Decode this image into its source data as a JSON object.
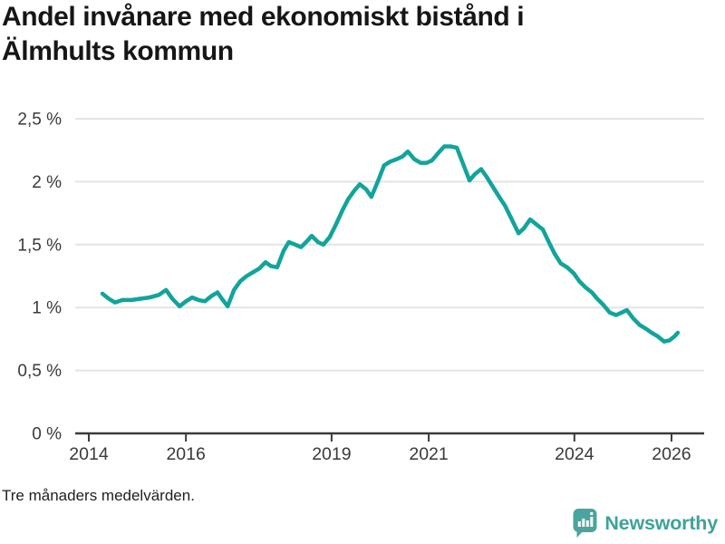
{
  "header": {
    "title_lines": [
      "Andel invånare med ekonomiskt bistånd i",
      "Älmhults kommun"
    ]
  },
  "footer": {
    "note": "Tre månaders medelvärden."
  },
  "branding": {
    "name": "Newsworthy",
    "icon": "bar-chart-speech-bubble-icon",
    "color": "#3ea29a"
  },
  "chart_data": {
    "type": "line",
    "title": "Andel invånare med ekonomiskt bistånd i Älmhults kommun",
    "note": "Tre månaders medelvärden.",
    "xlabel": "",
    "ylabel": "",
    "grid": "horizontal",
    "legend": "none",
    "xlim": [
      2013.72,
      2026.67
    ],
    "ylim": [
      0,
      2.64
    ],
    "x_ticks": [
      {
        "value": 2014,
        "label": "2014"
      },
      {
        "value": 2016,
        "label": "2016"
      },
      {
        "value": 2019,
        "label": "2019"
      },
      {
        "value": 2021,
        "label": "2021"
      },
      {
        "value": 2024,
        "label": "2024"
      },
      {
        "value": 2026,
        "label": "2026"
      }
    ],
    "y_ticks": [
      {
        "value": 0,
        "label": "0 %"
      },
      {
        "value": 0.5,
        "label": "0,5 %"
      },
      {
        "value": 1,
        "label": "1 %"
      },
      {
        "value": 1.5,
        "label": "1,5 %"
      },
      {
        "value": 2,
        "label": "2 %"
      },
      {
        "value": 2.5,
        "label": "2,5 %"
      }
    ],
    "colors": {
      "line": "#12a49b",
      "grid": "#e4e4e4",
      "axis": "#3b3b3b",
      "text": "#3a3a3a"
    },
    "series_name": "Andel invånare med ekonomiskt bistånd (%)",
    "points": [
      [
        2014.28,
        1.11
      ],
      [
        2014.41,
        1.07
      ],
      [
        2014.54,
        1.04
      ],
      [
        2014.69,
        1.06
      ],
      [
        2014.88,
        1.06
      ],
      [
        2015.06,
        1.07
      ],
      [
        2015.25,
        1.08
      ],
      [
        2015.44,
        1.1
      ],
      [
        2015.59,
        1.14
      ],
      [
        2015.72,
        1.07
      ],
      [
        2015.87,
        1.01
      ],
      [
        2016.0,
        1.05
      ],
      [
        2016.13,
        1.08
      ],
      [
        2016.26,
        1.06
      ],
      [
        2016.39,
        1.05
      ],
      [
        2016.52,
        1.09
      ],
      [
        2016.65,
        1.12
      ],
      [
        2016.74,
        1.07
      ],
      [
        2016.86,
        1.01
      ],
      [
        2016.99,
        1.14
      ],
      [
        2017.12,
        1.21
      ],
      [
        2017.25,
        1.25
      ],
      [
        2017.38,
        1.28
      ],
      [
        2017.51,
        1.31
      ],
      [
        2017.64,
        1.36
      ],
      [
        2017.75,
        1.33
      ],
      [
        2017.88,
        1.32
      ],
      [
        2018.01,
        1.45
      ],
      [
        2018.12,
        1.52
      ],
      [
        2018.25,
        1.5
      ],
      [
        2018.37,
        1.48
      ],
      [
        2018.5,
        1.53
      ],
      [
        2018.59,
        1.57
      ],
      [
        2018.72,
        1.52
      ],
      [
        2018.83,
        1.5
      ],
      [
        2018.96,
        1.56
      ],
      [
        2019.09,
        1.66
      ],
      [
        2019.22,
        1.77
      ],
      [
        2019.34,
        1.86
      ],
      [
        2019.47,
        1.93
      ],
      [
        2019.58,
        1.98
      ],
      [
        2019.71,
        1.94
      ],
      [
        2019.82,
        1.88
      ],
      [
        2019.95,
        2.0
      ],
      [
        2020.08,
        2.13
      ],
      [
        2020.21,
        2.16
      ],
      [
        2020.35,
        2.18
      ],
      [
        2020.46,
        2.2
      ],
      [
        2020.57,
        2.24
      ],
      [
        2020.7,
        2.18
      ],
      [
        2020.83,
        2.15
      ],
      [
        2020.96,
        2.15
      ],
      [
        2021.07,
        2.17
      ],
      [
        2021.2,
        2.23
      ],
      [
        2021.32,
        2.28
      ],
      [
        2021.45,
        2.28
      ],
      [
        2021.58,
        2.27
      ],
      [
        2021.71,
        2.14
      ],
      [
        2021.84,
        2.01
      ],
      [
        2021.95,
        2.06
      ],
      [
        2022.08,
        2.1
      ],
      [
        2022.19,
        2.04
      ],
      [
        2022.32,
        1.96
      ],
      [
        2022.45,
        1.88
      ],
      [
        2022.57,
        1.81
      ],
      [
        2022.7,
        1.71
      ],
      [
        2022.85,
        1.59
      ],
      [
        2022.96,
        1.63
      ],
      [
        2023.09,
        1.7
      ],
      [
        2023.22,
        1.66
      ],
      [
        2023.35,
        1.62
      ],
      [
        2023.46,
        1.53
      ],
      [
        2023.59,
        1.43
      ],
      [
        2023.72,
        1.35
      ],
      [
        2023.85,
        1.32
      ],
      [
        2023.99,
        1.27
      ],
      [
        2024.1,
        1.21
      ],
      [
        2024.23,
        1.16
      ],
      [
        2024.36,
        1.12
      ],
      [
        2024.47,
        1.07
      ],
      [
        2024.6,
        1.02
      ],
      [
        2024.73,
        0.96
      ],
      [
        2024.86,
        0.94
      ],
      [
        2024.97,
        0.96
      ],
      [
        2025.08,
        0.98
      ],
      [
        2025.22,
        0.91
      ],
      [
        2025.35,
        0.86
      ],
      [
        2025.48,
        0.83
      ],
      [
        2025.59,
        0.8
      ],
      [
        2025.72,
        0.77
      ],
      [
        2025.85,
        0.73
      ],
      [
        2025.96,
        0.74
      ],
      [
        2026.06,
        0.77
      ],
      [
        2026.13,
        0.8
      ]
    ]
  }
}
